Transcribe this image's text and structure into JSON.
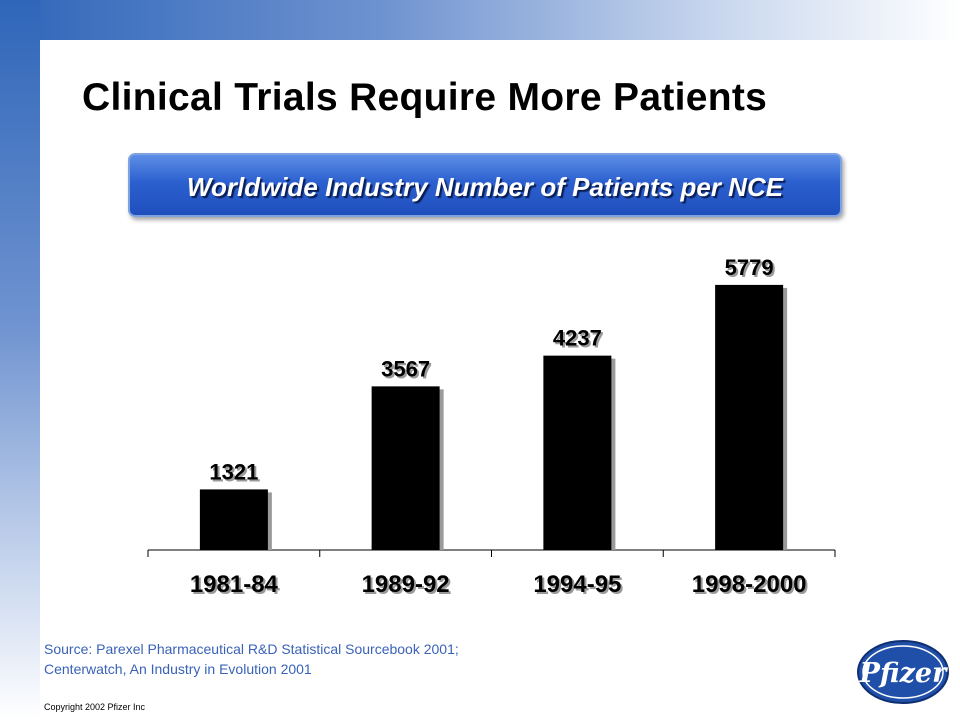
{
  "title": "Clinical Trials Require More Patients",
  "subtitle": "Worldwide Industry Number of Patients per NCE",
  "chart_data": {
    "type": "bar",
    "categories": [
      "1981-84",
      "1989-92",
      "1994-95",
      "1998-2000"
    ],
    "values": [
      1321,
      3567,
      4237,
      5779
    ],
    "data_labels": [
      "1321",
      "3567",
      "4237",
      "5779"
    ],
    "title": "Worldwide Industry Number of Patients per NCE",
    "xlabel": "",
    "ylabel": "",
    "ylim": [
      0,
      6300
    ],
    "grid": false,
    "legend": "none",
    "bar_color": "#000000"
  },
  "source": {
    "line1": "Source: Parexel Pharmaceutical R&D Statistical Sourcebook 2001;",
    "line2": "Centerwatch, An Industry in Evolution 2001"
  },
  "copyright": "Copyright 2002  Pfizer Inc",
  "logo_text": "Pfizer",
  "colors": {
    "accent_blue": "#2c60cf",
    "source_text": "#3a62b8",
    "logo_blue": "#1f4fa8"
  }
}
